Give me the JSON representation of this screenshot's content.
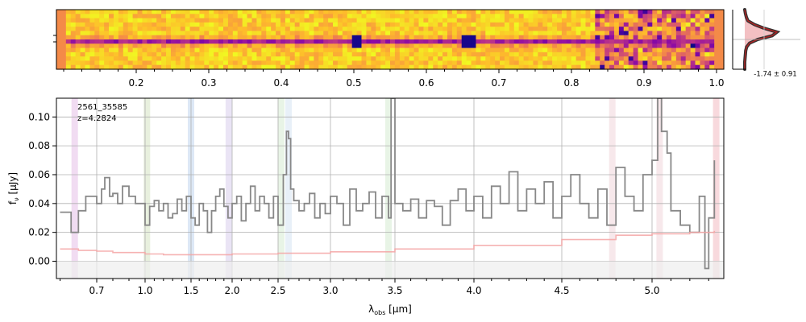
{
  "chart_data": [
    {
      "type": "heatmap",
      "description": "2D spectrum image",
      "colormap": "plasma",
      "xticks": [
        0.2,
        0.3,
        0.4,
        0.5,
        0.6,
        0.7,
        0.8,
        0.9,
        1.0
      ],
      "xticks_labels": [
        "0.2",
        "0.3",
        "0.4",
        "0.5",
        "0.6",
        "0.7",
        "0.8",
        "0.9",
        "1.0"
      ],
      "xlim": [
        0.09,
        1.01
      ],
      "trace_row_fraction": 0.5,
      "dark_knots": [
        0.5,
        0.655
      ]
    },
    {
      "type": "line",
      "description": "Spatial profile inset",
      "annotation": "-1.74 ± 0.91",
      "profile": [
        0.0,
        0.02,
        0.05,
        0.1,
        0.3,
        0.6,
        1.0,
        0.85,
        0.4,
        0.15,
        0.06,
        0.03,
        0.02,
        0.01,
        0.0,
        0.0,
        0.0
      ],
      "peak_fraction": 0.5
    },
    {
      "type": "line",
      "label": "2561_35585",
      "redshift_label": "z=4.2824",
      "xlabel": "λobs [μm]",
      "ylabel": "fν [μJy]",
      "xlim": [
        0.59,
        5.38
      ],
      "ylim": [
        -0.012,
        0.113
      ],
      "x_scale": "custom (approximately linear in pixel, non-linear in wavelength)",
      "xtick_values": [
        0.7,
        1.0,
        1.5,
        2.0,
        2.5,
        3.0,
        3.5,
        4.0,
        4.5,
        5.0
      ],
      "xtick_labels": [
        "0.7",
        "1.0",
        "1.5",
        "2.0",
        "2.5",
        "3.0",
        "3.5",
        "4.0",
        "4.5",
        "5.0"
      ],
      "ytick_values": [
        0.0,
        0.02,
        0.04,
        0.06,
        0.08,
        0.1
      ],
      "ytick_labels": [
        "0.00",
        "0.02",
        "0.04",
        "0.06",
        "0.08",
        "0.10"
      ],
      "grid": true,
      "series": [
        {
          "name": "flux",
          "color": "#888888",
          "x": [
            0.6,
            0.63,
            0.65,
            0.67,
            0.7,
            0.73,
            0.75,
            0.78,
            0.8,
            0.83,
            0.86,
            0.9,
            0.94,
            1.0,
            1.05,
            1.1,
            1.15,
            1.2,
            1.25,
            1.3,
            1.35,
            1.4,
            1.45,
            1.5,
            1.55,
            1.6,
            1.65,
            1.7,
            1.75,
            1.8,
            1.85,
            1.9,
            1.95,
            2.0,
            2.05,
            2.1,
            2.15,
            2.2,
            2.25,
            2.3,
            2.35,
            2.4,
            2.45,
            2.5,
            2.55,
            2.58,
            2.6,
            2.62,
            2.65,
            2.7,
            2.75,
            2.8,
            2.85,
            2.9,
            2.95,
            3.0,
            3.05,
            3.1,
            3.15,
            3.2,
            3.25,
            3.3,
            3.35,
            3.4,
            3.45,
            3.47,
            3.5,
            3.55,
            3.6,
            3.65,
            3.7,
            3.75,
            3.8,
            3.85,
            3.9,
            3.95,
            4.0,
            4.05,
            4.1,
            4.15,
            4.2,
            4.25,
            4.3,
            4.35,
            4.4,
            4.45,
            4.5,
            4.55,
            4.6,
            4.65,
            4.7,
            4.75,
            4.8,
            4.85,
            4.9,
            4.95,
            5.0,
            5.03,
            5.05,
            5.08,
            5.1,
            5.15,
            5.2,
            5.25,
            5.28,
            5.3,
            5.33
          ],
          "y": [
            0.034,
            0.02,
            0.035,
            0.045,
            0.04,
            0.05,
            0.058,
            0.045,
            0.047,
            0.04,
            0.052,
            0.045,
            0.04,
            0.025,
            0.038,
            0.042,
            0.035,
            0.04,
            0.03,
            0.033,
            0.043,
            0.035,
            0.045,
            0.03,
            0.025,
            0.04,
            0.035,
            0.02,
            0.035,
            0.045,
            0.05,
            0.038,
            0.03,
            0.04,
            0.045,
            0.028,
            0.04,
            0.052,
            0.035,
            0.045,
            0.04,
            0.03,
            0.045,
            0.025,
            0.06,
            0.09,
            0.085,
            0.05,
            0.042,
            0.035,
            0.04,
            0.047,
            0.03,
            0.04,
            0.033,
            0.045,
            0.04,
            0.025,
            0.05,
            0.035,
            0.04,
            0.048,
            0.03,
            0.045,
            0.03,
            0.113,
            0.04,
            0.035,
            0.043,
            0.03,
            0.042,
            0.038,
            0.025,
            0.042,
            0.05,
            0.035,
            0.045,
            0.03,
            0.052,
            0.04,
            0.062,
            0.035,
            0.05,
            0.04,
            0.055,
            0.03,
            0.045,
            0.06,
            0.04,
            0.03,
            0.05,
            0.025,
            0.065,
            0.045,
            0.035,
            0.06,
            0.07,
            0.113,
            0.09,
            0.075,
            0.035,
            0.025,
            0.02,
            0.045,
            -0.005,
            0.03,
            0.07
          ]
        },
        {
          "name": "error",
          "color": "#f4a4a4",
          "x": [
            0.6,
            0.65,
            0.7,
            0.8,
            1.0,
            1.2,
            1.5,
            2.0,
            2.5,
            3.0,
            3.5,
            4.0,
            4.5,
            4.8,
            5.0,
            5.2,
            5.33
          ],
          "y": [
            0.0085,
            0.0075,
            0.007,
            0.006,
            0.005,
            0.0045,
            0.0045,
            0.005,
            0.0055,
            0.0065,
            0.0085,
            0.011,
            0.015,
            0.018,
            0.019,
            0.02,
            0.021
          ]
        }
      ],
      "bands": [
        {
          "x": 0.64,
          "color": "#e7c4e9"
        },
        {
          "x": 1.02,
          "color": "#d9e6c8"
        },
        {
          "x": 1.5,
          "color": "#c7d8f0"
        },
        {
          "x": 1.96,
          "color": "#dcd2ee"
        },
        {
          "x": 2.53,
          "color": "#d9edd5"
        },
        {
          "x": 2.6,
          "color": "#d9e6f3"
        },
        {
          "x": 3.45,
          "color": "#d8edd6"
        },
        {
          "x": 4.78,
          "color": "#f2d8de"
        },
        {
          "x": 5.04,
          "color": "#f2d8de"
        },
        {
          "x": 5.34,
          "color": "#f4c0c6"
        }
      ]
    }
  ]
}
